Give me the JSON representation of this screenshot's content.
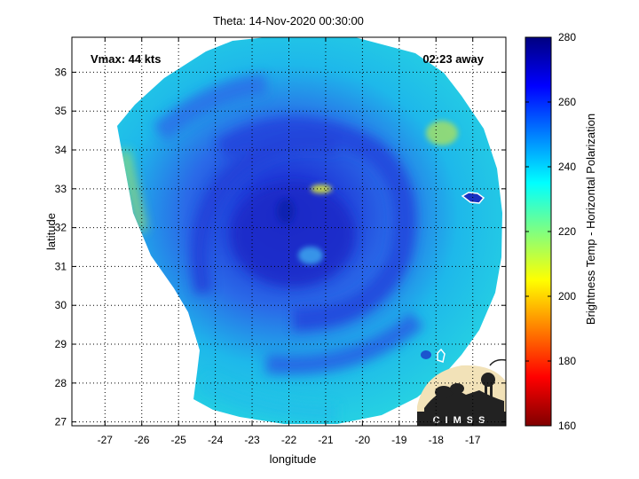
{
  "title": "Theta: 14-Nov-2020 00:30:00",
  "annotations": {
    "vmax": "Vmax: 44 kts",
    "time_away": "02:23 away"
  },
  "axes": {
    "xlabel": "longitude",
    "ylabel": "latitude",
    "x_ticks": [
      -27,
      -26,
      -25,
      -24,
      -23,
      -22,
      -21,
      -20,
      -19,
      -18,
      -17
    ],
    "y_ticks": [
      27,
      28,
      29,
      30,
      31,
      32,
      33,
      34,
      35,
      36
    ],
    "xlim": [
      -27.9,
      -16.1
    ],
    "ylim": [
      26.9,
      36.9
    ],
    "grid": true
  },
  "colorbar": {
    "label": "Brightness Temp - Horizontal Polarization",
    "ticks": [
      160,
      180,
      200,
      220,
      240,
      260,
      280
    ],
    "range": [
      160,
      280
    ],
    "colormap": "jet"
  },
  "logo": {
    "text": "CIMSS"
  },
  "colors": {
    "swath_base": "#1ec8e8",
    "inner_band": "#2a5ae8",
    "core": "#1a2cc8",
    "warm_spot": "#c8e832"
  },
  "chart_data": {
    "type": "heatmap",
    "title": "Theta: 14-Nov-2020 00:30:00",
    "xlabel": "longitude",
    "ylabel": "latitude",
    "xlim": [
      -27.9,
      -16.1
    ],
    "ylim": [
      26.9,
      36.9
    ],
    "value_range": [
      160,
      280
    ],
    "value_label": "Brightness Temp - Horizontal Polarization",
    "storm_center": {
      "lon": -22.1,
      "lat": 31.7
    },
    "features": [
      {
        "name": "eye region",
        "lon": -22.0,
        "lat": 31.6,
        "value": 265
      },
      {
        "name": "warm arc",
        "lon": -21.2,
        "lat": 33.0,
        "value": 210
      },
      {
        "name": "outer swath",
        "value": 240
      },
      {
        "name": "swath west edge",
        "lon": -27.0,
        "lat": 34.0,
        "value": 225
      }
    ],
    "islands": [
      {
        "lon": -16.6,
        "lat": 32.8
      },
      {
        "lon": -17.9,
        "lat": 28.7
      }
    ]
  }
}
